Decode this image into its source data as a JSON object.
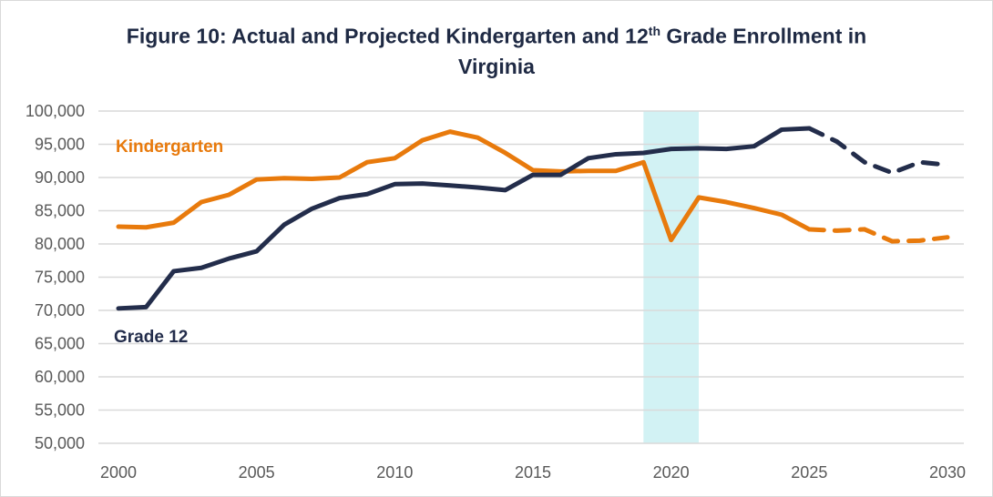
{
  "chart_data": {
    "type": "line",
    "title": "Figure 10: Actual and Projected Kindergarten and 12th Grade Enrollment in Virginia",
    "title_parts": {
      "before": "Figure 10: Actual and Projected Kindergarten and 12",
      "sup": "th",
      "after": " Grade Enrollment in Virginia"
    },
    "xlabel": "",
    "ylabel": "",
    "xlim": [
      2000,
      2030
    ],
    "ylim": [
      50000,
      100000
    ],
    "x_ticks": [
      "2000",
      "2005",
      "2010",
      "2015",
      "2020",
      "2025",
      "2030"
    ],
    "y_ticks": [
      "50,000",
      "55,000",
      "60,000",
      "65,000",
      "70,000",
      "75,000",
      "80,000",
      "85,000",
      "90,000",
      "95,000",
      "100,000"
    ],
    "grid": "horizontal",
    "shaded_region": {
      "x_start": 2019,
      "x_end": 2021,
      "color": "#d2f2f4"
    },
    "projection_start": 2025,
    "x": [
      2000,
      2001,
      2002,
      2003,
      2004,
      2005,
      2006,
      2007,
      2008,
      2009,
      2010,
      2011,
      2012,
      2013,
      2014,
      2015,
      2016,
      2017,
      2018,
      2019,
      2020,
      2021,
      2022,
      2023,
      2024,
      2025,
      2026,
      2027,
      2028,
      2029,
      2030
    ],
    "series": [
      {
        "name": "Kindergarten",
        "color": "#e87a0c",
        "values": [
          82600,
          82500,
          83200,
          86300,
          87400,
          89700,
          89900,
          89800,
          90000,
          92300,
          92900,
          95600,
          96900,
          96000,
          93700,
          91100,
          90900,
          91000,
          91000,
          92300,
          80600,
          87000,
          86300,
          85400,
          84400,
          82200,
          82000,
          82200,
          80400,
          80500,
          81000
        ]
      },
      {
        "name": "Grade 12",
        "color": "#232d4b",
        "values": [
          70300,
          70500,
          75900,
          76400,
          77800,
          78900,
          82900,
          85300,
          86900,
          87500,
          89000,
          89100,
          88800,
          88500,
          88100,
          90400,
          90400,
          92900,
          93500,
          93700,
          94300,
          94400,
          94300,
          94700,
          97200,
          97400,
          95400,
          92300,
          90700,
          92300,
          91900
        ]
      }
    ]
  }
}
